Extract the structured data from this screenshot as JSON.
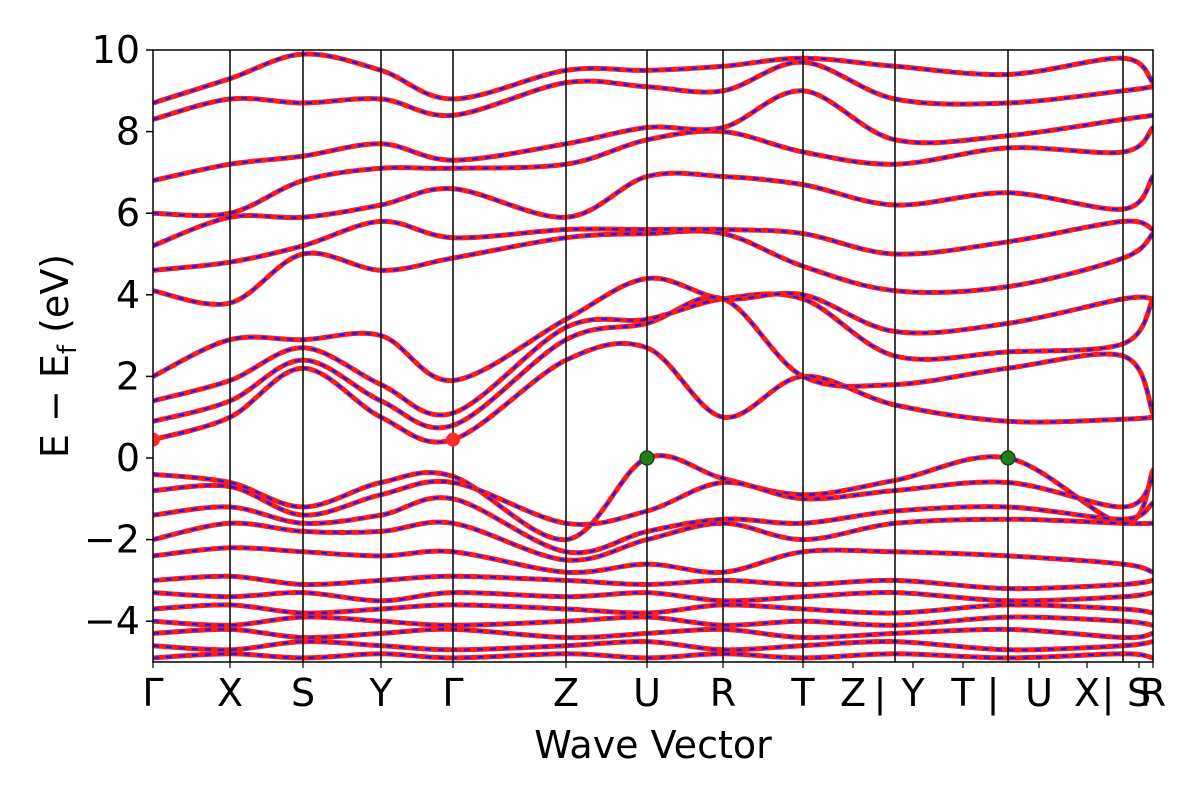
{
  "chart_data": {
    "type": "line",
    "xlabel": "Wave Vector",
    "ylabel_main": "E − E",
    "ylabel_sub": "f",
    "ylabel_unit": " (eV)",
    "ylim": [
      -5,
      10
    ],
    "yticks": [
      {
        "value": 10,
        "label": "10"
      },
      {
        "value": 8,
        "label": "8"
      },
      {
        "value": 6,
        "label": "6"
      },
      {
        "value": 4,
        "label": "4"
      },
      {
        "value": 2,
        "label": "2"
      },
      {
        "value": 0,
        "label": "0"
      },
      {
        "value": -2,
        "label": "−2"
      },
      {
        "value": -4,
        "label": "−4"
      }
    ],
    "kpoints": [
      {
        "label": "Γ",
        "pos": 0.0
      },
      {
        "label": "X",
        "pos": 0.077
      },
      {
        "label": "S",
        "pos": 0.15
      },
      {
        "label": "Y",
        "pos": 0.228
      },
      {
        "label": "Γ",
        "pos": 0.3
      },
      {
        "label": "Z",
        "pos": 0.413
      },
      {
        "label": "U",
        "pos": 0.494
      },
      {
        "label": "R",
        "pos": 0.57
      },
      {
        "label": "T",
        "pos": 0.65
      },
      {
        "label": "Z",
        "pos": 0.7
      },
      {
        "label": "|",
        "pos": 0.727
      },
      {
        "label": "Y",
        "pos": 0.76
      },
      {
        "label": "T",
        "pos": 0.81
      },
      {
        "label": "|",
        "pos": 0.84
      },
      {
        "label": "U",
        "pos": 0.886
      },
      {
        "label": "X",
        "pos": 0.934
      },
      {
        "label": "|",
        "pos": 0.955
      },
      {
        "label": "S",
        "pos": 0.986
      },
      {
        "label": "R",
        "pos": 1.0
      }
    ],
    "path_breaks": [
      0.0,
      0.077,
      0.15,
      0.228,
      0.3,
      0.413,
      0.494,
      0.57,
      0.65,
      0.742,
      0.855,
      0.97,
      1.0
    ],
    "special_points": [
      {
        "name": "CBM",
        "k": 0.0,
        "E": 0.45,
        "color": "#ff2a2a"
      },
      {
        "name": "CBM",
        "k": 0.3,
        "E": 0.45,
        "color": "#ff2a2a"
      },
      {
        "name": "VBM",
        "k": 0.494,
        "E": 0.0,
        "color": "#1e7d1e"
      },
      {
        "name": "VBM",
        "k": 0.855,
        "E": 0.0,
        "color": "#1e7d1e"
      }
    ],
    "series": [
      {
        "name": "",
        "color": "#ff1a1a"
      },
      {
        "name": "",
        "color": "#1a1aff"
      }
    ],
    "bands": [
      {
        "k": [
          0.0,
          0.077,
          0.15,
          0.228,
          0.3,
          0.413,
          0.494,
          0.57,
          0.65,
          0.742,
          0.855,
          0.97,
          1.0
        ],
        "E": [
          0.45,
          1.0,
          2.2,
          1.0,
          0.45,
          2.4,
          2.7,
          1.0,
          2.0,
          1.3,
          0.9,
          0.95,
          1.0
        ]
      },
      {
        "k": [
          0.0,
          0.077,
          0.15,
          0.228,
          0.3,
          0.413,
          0.494,
          0.57,
          0.65,
          0.742,
          0.855,
          0.97,
          1.0
        ],
        "E": [
          0.9,
          1.4,
          2.4,
          1.4,
          0.8,
          2.9,
          3.3,
          3.9,
          2.0,
          1.8,
          2.2,
          2.5,
          1.1
        ]
      },
      {
        "k": [
          0.0,
          0.077,
          0.15,
          0.228,
          0.3,
          0.413,
          0.494,
          0.57,
          0.65,
          0.742,
          0.855,
          0.97,
          1.0
        ],
        "E": [
          1.4,
          1.9,
          2.7,
          1.8,
          1.1,
          3.2,
          3.4,
          3.9,
          3.9,
          2.5,
          2.6,
          2.8,
          3.9
        ]
      },
      {
        "k": [
          0.0,
          0.077,
          0.15,
          0.228,
          0.3,
          0.413,
          0.494,
          0.57,
          0.65,
          0.742,
          0.855,
          0.97,
          1.0
        ],
        "E": [
          2.0,
          2.9,
          2.9,
          3.0,
          1.9,
          3.4,
          4.4,
          3.9,
          4.0,
          3.1,
          3.3,
          3.9,
          3.9
        ]
      },
      {
        "k": [
          0.0,
          0.077,
          0.15,
          0.228,
          0.3,
          0.413,
          0.494,
          0.57,
          0.65,
          0.742,
          0.855,
          0.97,
          1.0
        ],
        "E": [
          4.1,
          3.8,
          5.0,
          4.6,
          4.9,
          5.4,
          5.5,
          5.5,
          4.7,
          4.1,
          4.2,
          4.9,
          5.5
        ]
      },
      {
        "k": [
          0.0,
          0.077,
          0.15,
          0.228,
          0.3,
          0.413,
          0.494,
          0.57,
          0.65,
          0.742,
          0.855,
          0.97,
          1.0
        ],
        "E": [
          4.6,
          4.8,
          5.2,
          5.8,
          5.4,
          5.6,
          5.6,
          5.6,
          5.5,
          5.0,
          5.3,
          5.8,
          5.6
        ]
      },
      {
        "k": [
          0.0,
          0.077,
          0.15,
          0.228,
          0.3,
          0.413,
          0.494,
          0.57,
          0.65,
          0.742,
          0.855,
          0.97,
          1.0
        ],
        "E": [
          5.2,
          5.9,
          5.9,
          6.2,
          6.6,
          5.9,
          6.9,
          6.9,
          6.7,
          6.2,
          6.5,
          6.1,
          6.9
        ]
      },
      {
        "k": [
          0.0,
          0.077,
          0.15,
          0.228,
          0.3,
          0.413,
          0.494,
          0.57,
          0.65,
          0.742,
          0.855,
          0.97,
          1.0
        ],
        "E": [
          6.0,
          6.0,
          6.8,
          7.1,
          7.1,
          7.2,
          7.8,
          8.0,
          7.5,
          7.2,
          7.6,
          7.5,
          8.1
        ]
      },
      {
        "k": [
          0.0,
          0.077,
          0.15,
          0.228,
          0.3,
          0.413,
          0.494,
          0.57,
          0.65,
          0.742,
          0.855,
          0.97,
          1.0
        ],
        "E": [
          6.8,
          7.2,
          7.4,
          7.7,
          7.3,
          7.7,
          8.1,
          8.1,
          9.0,
          7.8,
          7.9,
          8.3,
          8.4
        ]
      },
      {
        "k": [
          0.0,
          0.077,
          0.15,
          0.228,
          0.3,
          0.413,
          0.494,
          0.57,
          0.65,
          0.742,
          0.855,
          0.97,
          1.0
        ],
        "E": [
          8.3,
          8.8,
          8.7,
          8.8,
          8.4,
          9.2,
          9.1,
          9.0,
          9.7,
          8.8,
          8.7,
          9.0,
          9.1
        ]
      },
      {
        "k": [
          0.0,
          0.077,
          0.15,
          0.228,
          0.3,
          0.413,
          0.494,
          0.57,
          0.65,
          0.742,
          0.855,
          0.97,
          1.0
        ],
        "E": [
          8.7,
          9.3,
          9.9,
          9.5,
          8.8,
          9.5,
          9.5,
          9.6,
          9.8,
          9.6,
          9.4,
          9.8,
          9.2
        ]
      },
      {
        "k": [
          0.0,
          0.077,
          0.15,
          0.228,
          0.3,
          0.413,
          0.494,
          0.57,
          0.65,
          0.742,
          0.855,
          0.97,
          1.0
        ],
        "E": [
          -0.4,
          -0.6,
          -1.2,
          -0.6,
          -0.45,
          -2.0,
          0.0,
          -0.5,
          -0.9,
          -0.55,
          0.0,
          -1.6,
          -0.3
        ]
      },
      {
        "k": [
          0.0,
          0.077,
          0.15,
          0.228,
          0.3,
          0.413,
          0.494,
          0.57,
          0.65,
          0.742,
          0.855,
          0.97,
          1.0
        ],
        "E": [
          -0.8,
          -0.7,
          -1.4,
          -0.9,
          -0.6,
          -1.6,
          -1.3,
          -0.6,
          -1.0,
          -0.8,
          -0.6,
          -1.2,
          -0.5
        ]
      },
      {
        "k": [
          0.0,
          0.077,
          0.15,
          0.228,
          0.3,
          0.413,
          0.494,
          0.57,
          0.65,
          0.742,
          0.855,
          0.97,
          1.0
        ],
        "E": [
          -1.4,
          -1.2,
          -1.6,
          -1.4,
          -1.0,
          -2.3,
          -1.8,
          -1.5,
          -1.6,
          -1.3,
          -1.2,
          -1.5,
          -1.1
        ]
      },
      {
        "k": [
          0.0,
          0.077,
          0.15,
          0.228,
          0.3,
          0.413,
          0.494,
          0.57,
          0.65,
          0.742,
          0.855,
          0.97,
          1.0
        ],
        "E": [
          -2.0,
          -1.6,
          -1.8,
          -1.8,
          -1.6,
          -2.5,
          -2.0,
          -1.6,
          -2.0,
          -1.6,
          -1.5,
          -1.6,
          -1.6
        ]
      },
      {
        "k": [
          0.0,
          0.077,
          0.15,
          0.228,
          0.3,
          0.413,
          0.494,
          0.57,
          0.65,
          0.742,
          0.855,
          0.97,
          1.0
        ],
        "E": [
          -2.4,
          -2.2,
          -2.3,
          -2.4,
          -2.3,
          -2.8,
          -2.6,
          -2.8,
          -2.3,
          -2.3,
          -2.4,
          -2.6,
          -2.8
        ]
      },
      {
        "k": [
          0.0,
          0.077,
          0.15,
          0.228,
          0.3,
          0.413,
          0.494,
          0.57,
          0.65,
          0.742,
          0.855,
          0.97,
          1.0
        ],
        "E": [
          -3.0,
          -2.9,
          -3.1,
          -3.0,
          -2.9,
          -3.0,
          -3.1,
          -3.0,
          -3.1,
          -3.0,
          -3.2,
          -3.1,
          -3.0
        ]
      },
      {
        "k": [
          0.0,
          0.077,
          0.15,
          0.228,
          0.3,
          0.413,
          0.494,
          0.57,
          0.65,
          0.742,
          0.855,
          0.97,
          1.0
        ],
        "E": [
          -3.3,
          -3.4,
          -3.3,
          -3.5,
          -3.3,
          -3.4,
          -3.3,
          -3.5,
          -3.4,
          -3.3,
          -3.5,
          -3.4,
          -3.3
        ]
      },
      {
        "k": [
          0.0,
          0.077,
          0.15,
          0.228,
          0.3,
          0.413,
          0.494,
          0.57,
          0.65,
          0.742,
          0.855,
          0.97,
          1.0
        ],
        "E": [
          -3.7,
          -3.6,
          -3.8,
          -3.7,
          -3.6,
          -3.7,
          -3.8,
          -3.6,
          -3.7,
          -3.8,
          -3.6,
          -3.7,
          -3.8
        ]
      },
      {
        "k": [
          0.0,
          0.077,
          0.15,
          0.228,
          0.3,
          0.413,
          0.494,
          0.57,
          0.65,
          0.742,
          0.855,
          0.97,
          1.0
        ],
        "E": [
          -4.0,
          -4.1,
          -3.9,
          -4.0,
          -4.1,
          -4.0,
          -3.9,
          -4.1,
          -4.0,
          -4.1,
          -3.9,
          -4.0,
          -4.1
        ]
      },
      {
        "k": [
          0.0,
          0.077,
          0.15,
          0.228,
          0.3,
          0.413,
          0.494,
          0.57,
          0.65,
          0.742,
          0.855,
          0.97,
          1.0
        ],
        "E": [
          -4.3,
          -4.2,
          -4.4,
          -4.3,
          -4.2,
          -4.4,
          -4.3,
          -4.2,
          -4.4,
          -4.3,
          -4.2,
          -4.4,
          -4.3
        ]
      },
      {
        "k": [
          0.0,
          0.077,
          0.15,
          0.228,
          0.3,
          0.413,
          0.494,
          0.57,
          0.65,
          0.742,
          0.855,
          0.97,
          1.0
        ],
        "E": [
          -4.6,
          -4.7,
          -4.5,
          -4.6,
          -4.7,
          -4.6,
          -4.5,
          -4.7,
          -4.6,
          -4.5,
          -4.7,
          -4.6,
          -4.5
        ]
      },
      {
        "k": [
          0.0,
          0.077,
          0.15,
          0.228,
          0.3,
          0.413,
          0.494,
          0.57,
          0.65,
          0.742,
          0.855,
          0.97,
          1.0
        ],
        "E": [
          -4.9,
          -4.8,
          -4.9,
          -4.8,
          -4.9,
          -4.8,
          -4.9,
          -4.8,
          -4.9,
          -4.8,
          -4.9,
          -4.8,
          -4.9
        ]
      }
    ]
  }
}
